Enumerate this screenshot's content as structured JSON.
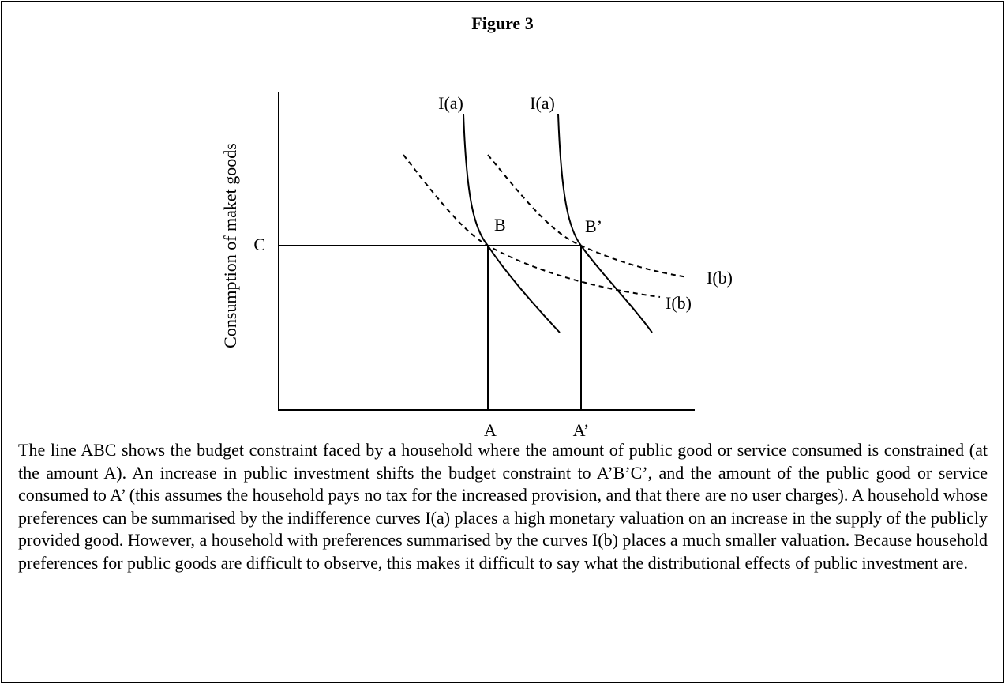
{
  "title": "Figure 3",
  "diagram": {
    "y_axis_label": "Consumption of maket goods",
    "labels": {
      "c": "C",
      "a": "A",
      "a_prime": "A’",
      "b": "B",
      "b_prime": "B’",
      "ia_left": "I(a)",
      "ia_right": "I(a)",
      "ib_upper": "I(b)",
      "ib_lower": "I(b)"
    }
  },
  "caption": "The line ABC shows the budget constraint faced by a household where the amount of public good or service consumed is constrained (at the amount A). An increase in public investment shifts the budget constraint to A’B’C’, and the amount of the public good or service consumed to A’ (this assumes the household pays no tax for the increased provision, and that there are no user charges). A household whose preferences can be summarised by the indifference curves I(a) places a high monetary valuation on an increase in the supply of the publicly provided good. However, a household with preferences summarised by the curves I(b) places a much smaller valuation. Because household preferences for public goods are difficult to observe, this makes it difficult to say what the distributional effects of public investment are."
}
